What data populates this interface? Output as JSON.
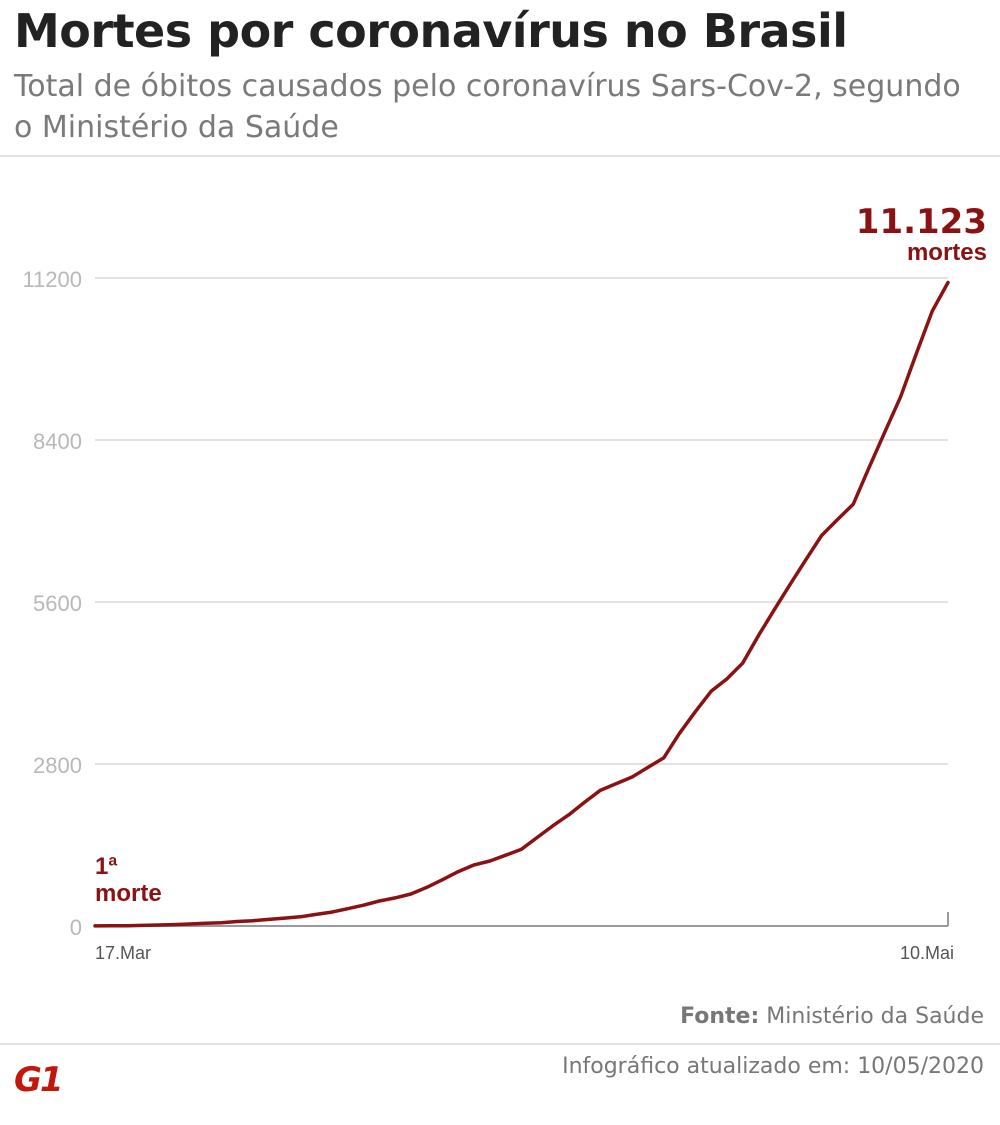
{
  "header": {
    "title": "Mortes por coronavírus no Brasil",
    "subtitle": "Total de óbitos causados pelo coronavírus Sars-Cov-2, segundo o Ministério da Saúde"
  },
  "footer": {
    "source_label": "Fonte:",
    "source_value": "Ministério da Saúde",
    "updated": "Infográfico atualizado em: 10/05/2020",
    "logo_text": "G1"
  },
  "colors": {
    "line": "#8b1212",
    "grid": "#d8d8d8",
    "tick": "#b8b8b8",
    "title": "#222222",
    "subtitle": "#7a7a7a",
    "brand": "#c4170c"
  },
  "chart_data": {
    "type": "line",
    "title": "",
    "xlabel": "",
    "ylabel": "",
    "x_start_label": "17.Mar",
    "x_end_label": "10.Mai",
    "ylim": [
      0,
      11200
    ],
    "yticks": [
      0,
      2800,
      5600,
      8400,
      11200
    ],
    "ytick_labels": [
      "0",
      "2800",
      "5600",
      "8400",
      "11200"
    ],
    "grid": true,
    "series": [
      {
        "values": [
          1,
          3,
          6,
          11,
          18,
          25,
          34,
          46,
          57,
          77,
          92,
          114,
          136,
          159,
          201,
          240,
          299,
          359,
          432,
          486,
          553,
          667,
          800,
          941,
          1056,
          1124,
          1223,
          1328,
          1532,
          1736,
          1924,
          2141,
          2347,
          2462,
          2575,
          2741,
          2906,
          3331,
          3704,
          4057,
          4271,
          4543,
          5017,
          5466,
          5901,
          6329,
          6750,
          7025,
          7288,
          7921,
          8536,
          9146,
          9897,
          10627,
          11123
        ]
      }
    ],
    "annotations": {
      "first": {
        "line1": "1ª",
        "line2": "morte"
      },
      "last": {
        "value_text": "11.123",
        "unit_text": "mortes"
      }
    }
  }
}
